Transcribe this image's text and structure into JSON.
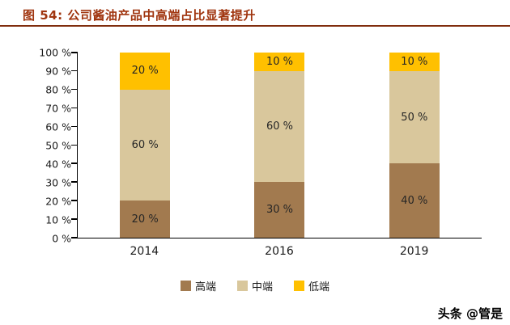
{
  "header": {
    "title": "图 54: 公司酱油产品中高端占比显著提升"
  },
  "footer": {
    "watermark": "头条 @管是"
  },
  "theme": {
    "title_color": "#A0350F",
    "rule_color": "#802D0D"
  },
  "chart_data": {
    "type": "bar",
    "stacked": true,
    "percent": true,
    "grid": false,
    "title": "图 54: 公司酱油产品中高端占比显著提升",
    "categories": [
      "2014",
      "2016",
      "2019"
    ],
    "series": [
      {
        "name": "高端",
        "color": "#A27A4F",
        "values": [
          20,
          30,
          40
        ]
      },
      {
        "name": "中端",
        "color": "#D9C79C",
        "values": [
          60,
          60,
          50
        ]
      },
      {
        "name": "低端",
        "color": "#FFC000",
        "values": [
          20,
          10,
          10
        ]
      }
    ],
    "ylim": [
      0,
      100
    ],
    "ytick_step": 10,
    "ytick_suffix": " %",
    "label_suffix": " %",
    "legend_position": "bottom"
  }
}
